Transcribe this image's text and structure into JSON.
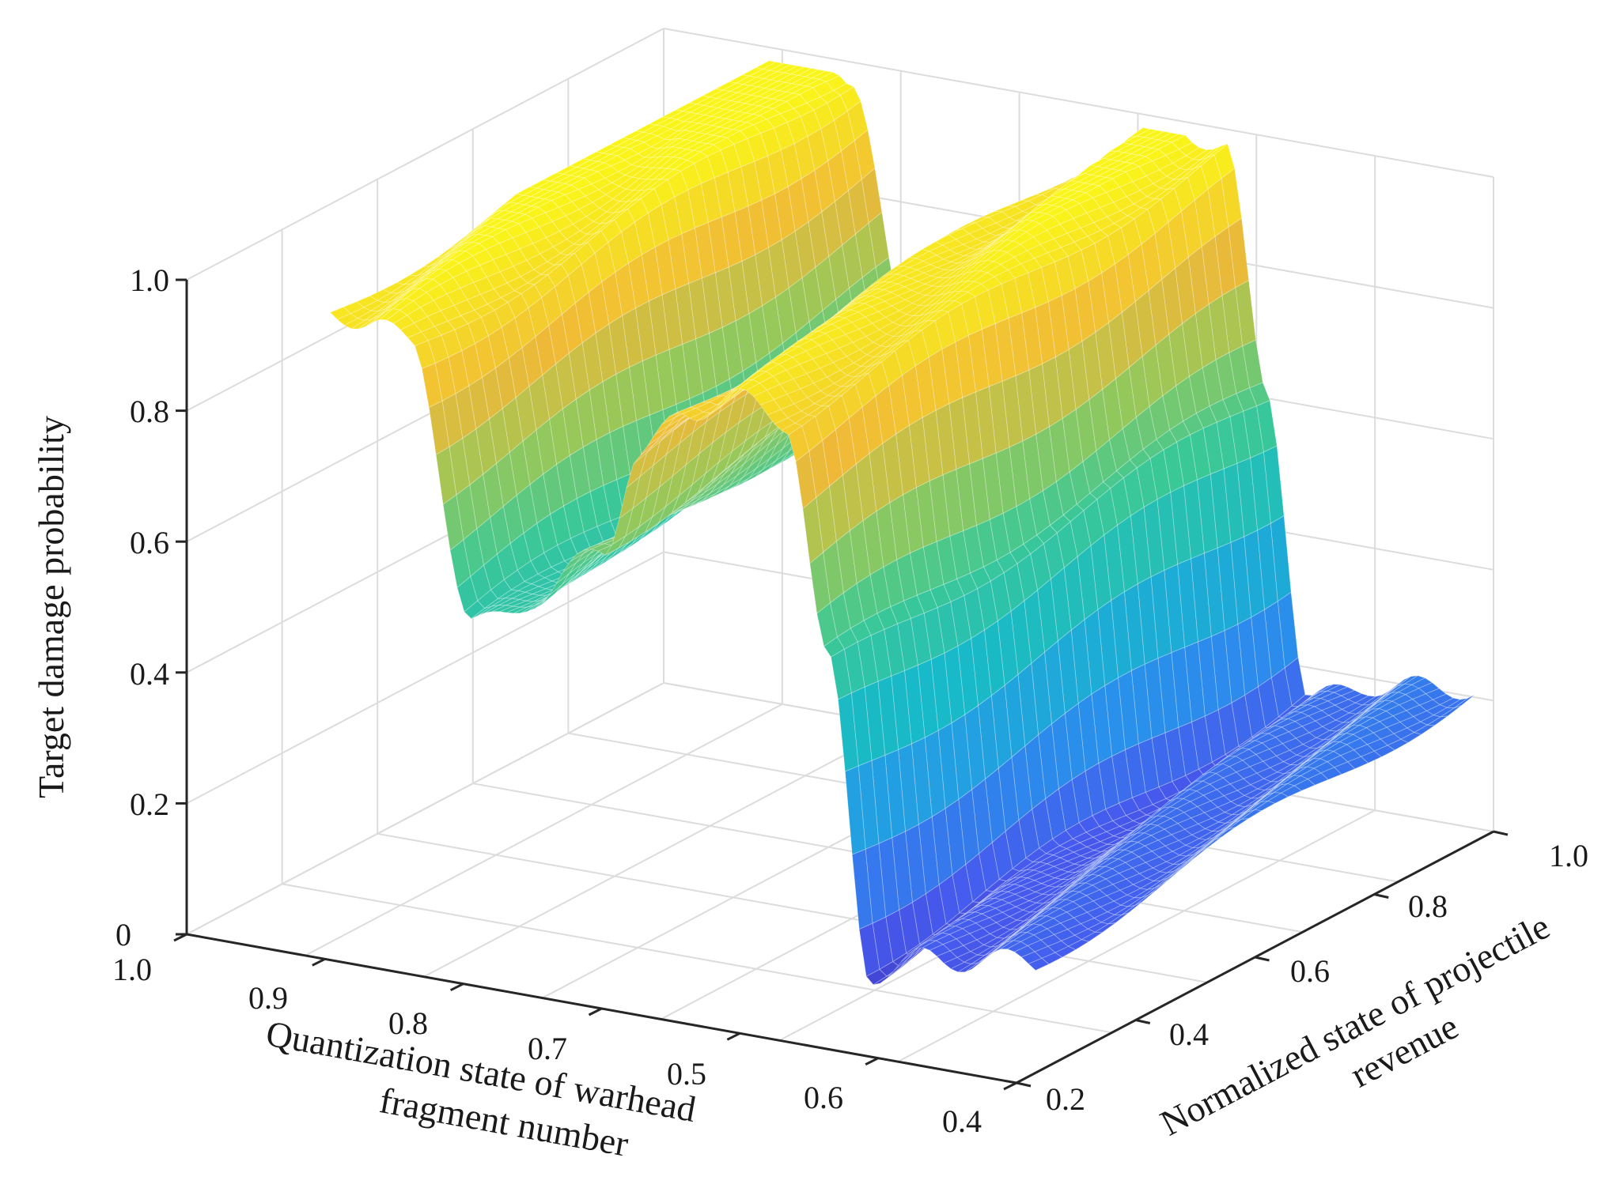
{
  "chart_data": {
    "type": "surface3d",
    "zlabel": "Target damage probability",
    "xlabel_lines": [
      "Quantization state of warhead",
      "fragment number"
    ],
    "ylabel_lines": [
      "Normalized state of projectile",
      "revenue"
    ],
    "z_ticks": [
      "0",
      "0.2",
      "0.4",
      "0.6",
      "0.8",
      "1.0"
    ],
    "x_ticks": [
      "1.0",
      "0.9",
      "0.8",
      "0.7",
      "0.5",
      "0.6",
      "0.4"
    ],
    "y_ticks": [
      "0.2",
      "0.4",
      "0.6",
      "0.8",
      "1.0"
    ],
    "zlim": [
      0,
      1
    ],
    "grid": true,
    "colormap": "parula",
    "surface": {
      "u_count": 101,
      "v_count": 34,
      "profile": [
        [
          0.0,
          0.98
        ],
        [
          0.1,
          1.0
        ],
        [
          0.2,
          1.0
        ],
        [
          0.25,
          0.97
        ],
        [
          0.32,
          0.56
        ],
        [
          0.4,
          0.62
        ],
        [
          0.48,
          0.72
        ],
        [
          0.52,
          0.86
        ],
        [
          0.58,
          0.95
        ],
        [
          0.64,
          0.98
        ],
        [
          0.7,
          0.96
        ],
        [
          0.75,
          0.6
        ],
        [
          0.8,
          0.14
        ],
        [
          0.88,
          0.18
        ],
        [
          1.0,
          0.2
        ]
      ],
      "v_slope": 0.07
    }
  }
}
